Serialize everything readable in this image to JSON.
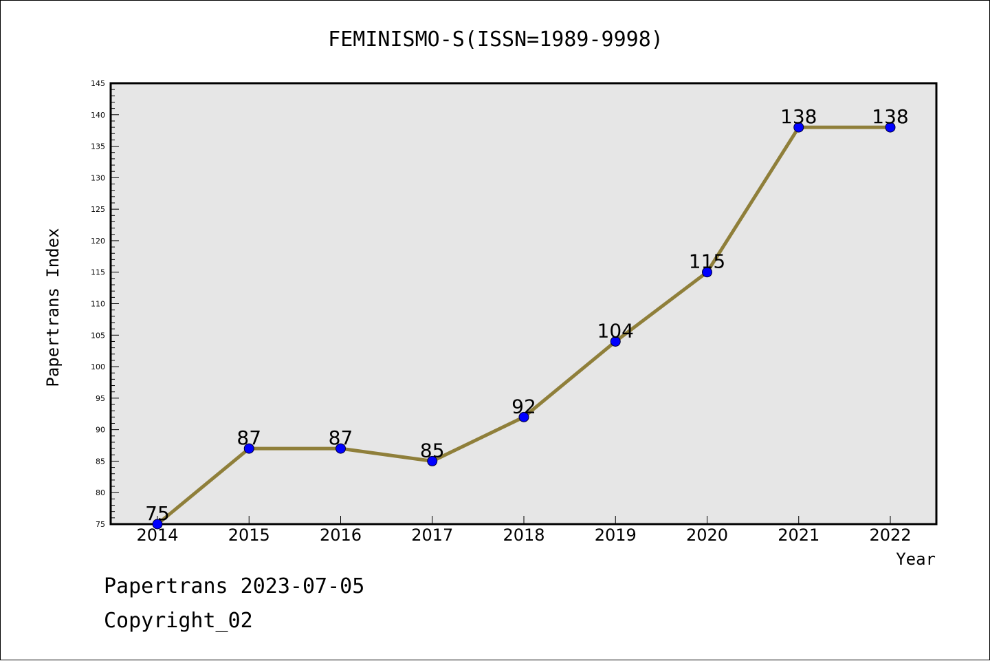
{
  "chart_data": {
    "type": "line",
    "title": "FEMINISMO-S(ISSN=1989-9998)",
    "xlabel": "Year",
    "ylabel": "Papertrans Index",
    "categories": [
      "2014",
      "2015",
      "2016",
      "2017",
      "2018",
      "2019",
      "2020",
      "2021",
      "2022"
    ],
    "series": [
      {
        "values": [
          75,
          87,
          87,
          85,
          92,
          104,
          115,
          138,
          138
        ]
      }
    ],
    "data_labels": [
      "75",
      "87",
      "87",
      "85",
      "92",
      "104",
      "115",
      "138",
      "138"
    ],
    "ylim": [
      75,
      145
    ],
    "yticks": [
      75,
      80,
      85,
      90,
      95,
      100,
      105,
      110,
      115,
      120,
      125,
      130,
      135,
      140,
      145
    ],
    "grid": false,
    "colors": {
      "line": "#8f7f3a",
      "marker": "#0000ff",
      "plot_bg": "#e6e6e6"
    }
  },
  "footer": {
    "date_line": "Papertrans 2023-07-05",
    "copyright": "Copyright_02"
  }
}
